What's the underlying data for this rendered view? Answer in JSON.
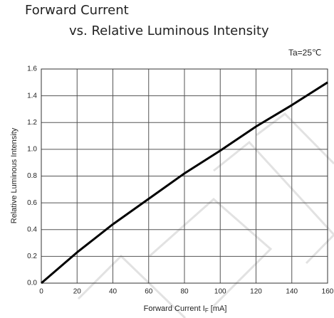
{
  "chart_data": {
    "type": "line",
    "title": [
      "Forward Current",
      "vs. Relative Luminous Intensity"
    ],
    "subtitle": "Ta=25℃",
    "xlabel": [
      "Forward Current I",
      "F",
      " [mA]"
    ],
    "ylabel": "Relative Luminous Intensity",
    "x": [
      0,
      20,
      40,
      60,
      80,
      100,
      120,
      140,
      160
    ],
    "series": [
      {
        "color": "#000000",
        "values": [
          0,
          0.23,
          0.44,
          0.63,
          0.82,
          0.99,
          1.17,
          1.33,
          1.5
        ]
      }
    ],
    "xlim": [
      0,
      160
    ],
    "ylim": [
      0,
      1.6
    ],
    "xticks": [
      0,
      20,
      40,
      60,
      80,
      100,
      120,
      140,
      160
    ],
    "yticks": [
      {
        "value": 0,
        "label": "0.0"
      },
      0.2,
      0.4,
      0.6,
      0.8,
      {
        "value": 1,
        "label": "1.0"
      },
      1.2,
      1.4,
      1.6
    ],
    "grid": true
  }
}
